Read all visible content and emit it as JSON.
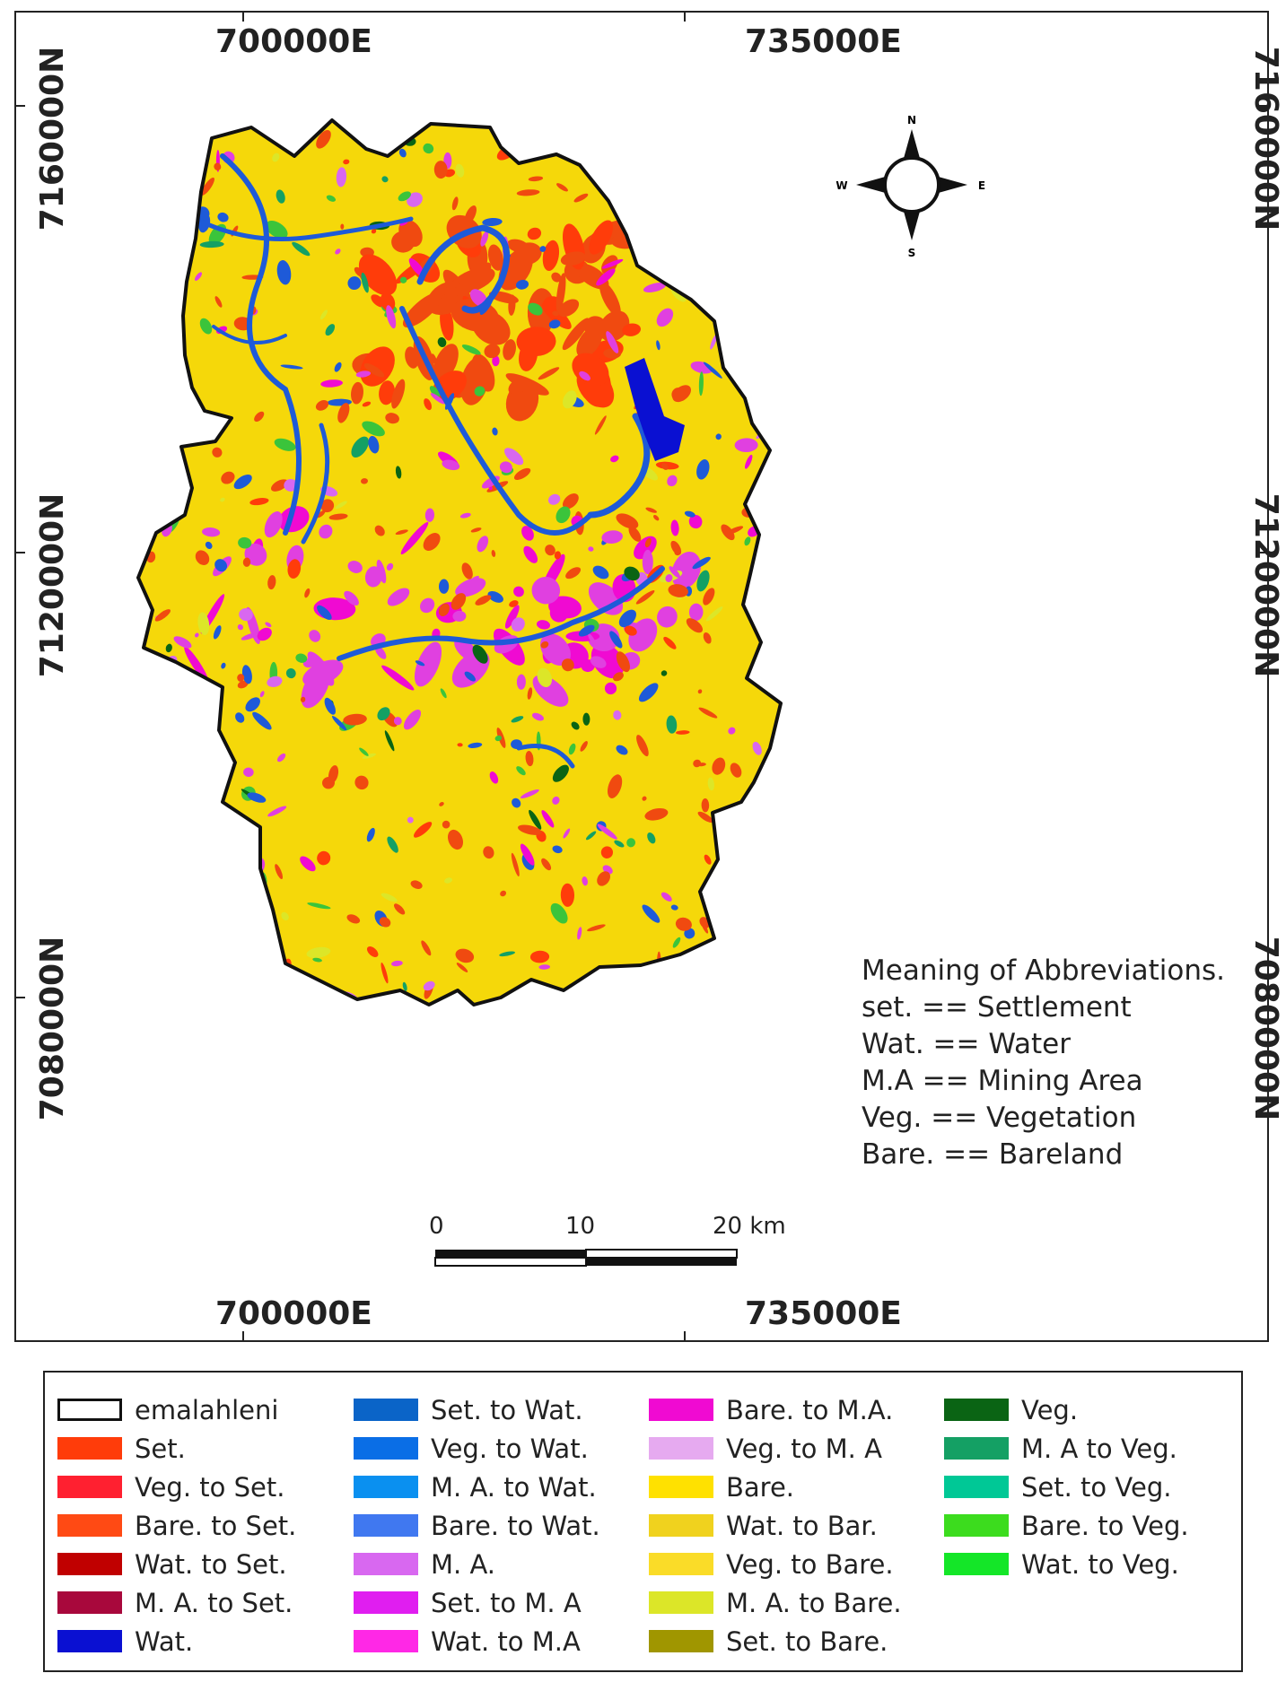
{
  "coordinates": {
    "top_left": "700000E",
    "top_right": "735000E",
    "bottom_left": "700000E",
    "bottom_right": "735000E",
    "left_top": "7160000N",
    "left_middle": "7120000N",
    "left_bottom": "7080000N",
    "right_top": "7160000N",
    "right_middle": "7120000N",
    "right_bottom": "7080000N"
  },
  "compass": {
    "north": "N",
    "south": "S",
    "east": "E",
    "west": "W"
  },
  "abbreviations": {
    "heading": "Meaning of Abbreviations.",
    "items": [
      "set. == Settlement",
      "Wat. == Water",
      "M.A == Mining Area",
      "Veg. == Vegetation",
      "Bare. == Bareland"
    ]
  },
  "scale_bar": {
    "labels": [
      "0",
      "10",
      "20 km"
    ]
  },
  "colors": {
    "bare": "#f5d80a",
    "settlement": "#f04a10",
    "water": "#1e5ad8",
    "mining_area": "#e040e0",
    "vegetation": "#3bc43b"
  },
  "legend": {
    "columns": [
      [
        {
          "label": "emalahleni",
          "color": "#ffffff",
          "outline": true
        },
        {
          "label": "Set.",
          "color": "#ff3c0a"
        },
        {
          "label": "Veg. to Set.",
          "color": "#ff2030"
        },
        {
          "label": "Bare. to Set.",
          "color": "#ff4a14"
        },
        {
          "label": "Wat. to Set.",
          "color": "#c00000"
        },
        {
          "label": "M. A. to Set.",
          "color": "#a8083c"
        },
        {
          "label": "Wat.",
          "color": "#0a10d2"
        }
      ],
      [
        {
          "label": "Set. to Wat.",
          "color": "#0a64c8"
        },
        {
          "label": "Veg. to Wat.",
          "color": "#0a6ee6"
        },
        {
          "label": "M. A. to Wat.",
          "color": "#0a90f0"
        },
        {
          "label": "Bare. to Wat.",
          "color": "#4078f0"
        },
        {
          "label": "M. A.",
          "color": "#d868f0"
        },
        {
          "label": "Set. to M. A",
          "color": "#e01ef0"
        },
        {
          "label": "Wat. to M.A",
          "color": "#ff28e6"
        }
      ],
      [
        {
          "label": "Bare. to M.A.",
          "color": "#f00ad2"
        },
        {
          "label": "Veg. to M. A",
          "color": "#e6aaf0"
        },
        {
          "label": "Bare.",
          "color": "#ffe100"
        },
        {
          "label": "Wat. to Bar.",
          "color": "#f0d21e"
        },
        {
          "label": "Veg. to Bare.",
          "color": "#fadc28"
        },
        {
          "label": "M. A. to Bare.",
          "color": "#dce628"
        },
        {
          "label": "Set. to Bare.",
          "color": "#a09600"
        }
      ],
      [
        {
          "label": "Veg.",
          "color": "#0a6414"
        },
        {
          "label": "M. A to Veg.",
          "color": "#14a064"
        },
        {
          "label": "Set. to Veg.",
          "color": "#00c896"
        },
        {
          "label": "Bare. to Veg.",
          "color": "#3cdc1e"
        },
        {
          "label": "Wat. to Veg.",
          "color": "#14e628"
        }
      ]
    ]
  }
}
